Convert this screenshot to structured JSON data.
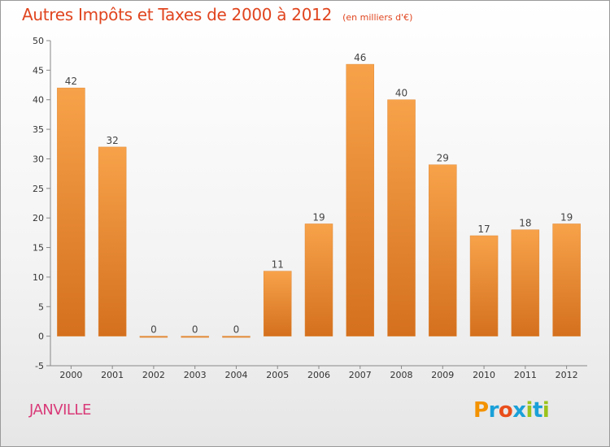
{
  "chart_data": {
    "type": "bar",
    "title": "Autres Impôts et Taxes de 2000 à 2012",
    "unit_note": "(en milliers d'€)",
    "categories": [
      "2000",
      "2001",
      "2002",
      "2003",
      "2004",
      "2005",
      "2006",
      "2007",
      "2008",
      "2009",
      "2010",
      "2011",
      "2012"
    ],
    "values": [
      42,
      32,
      0,
      0,
      0,
      11,
      19,
      46,
      40,
      29,
      17,
      18,
      19
    ],
    "data_labels": [
      "42",
      "32",
      "0",
      "0",
      "0",
      "11",
      "19",
      "46",
      "40",
      "29",
      "17",
      "18",
      "19"
    ],
    "ylim": [
      -5,
      50
    ],
    "yticks": [
      -5,
      0,
      5,
      10,
      15,
      20,
      25,
      30,
      35,
      40,
      45,
      50
    ],
    "grid": false,
    "bar_color": "#f08a2c"
  },
  "place": "JANVILLE",
  "logo": {
    "text": "Proxiti",
    "letter_colors": [
      "#f39200",
      "#1aa0d8",
      "#e94e1b",
      "#1aa0d8",
      "#9bc31c",
      "#1aa0d8",
      "#9bc31c"
    ]
  }
}
